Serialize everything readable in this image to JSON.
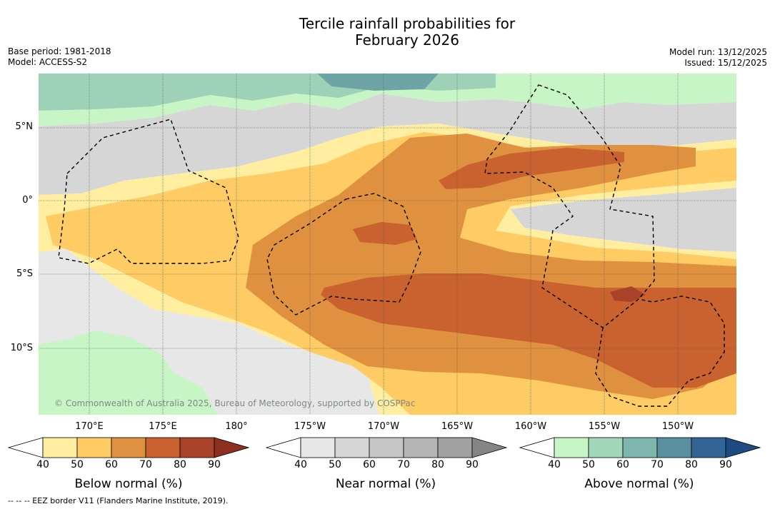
{
  "title_line1": "Tercile rainfall probabilities for",
  "title_line2": "February 2026",
  "meta_left": [
    "Base period: 1981-2018",
    "Model: ACCESS-S2"
  ],
  "meta_right": [
    "Model run: 13/12/2025",
    "Issued: 15/12/2025"
  ],
  "lat_ticks": [
    "5°N",
    "0°",
    "5°S",
    "10°S"
  ],
  "lon_ticks": [
    "170°E",
    "175°E",
    "180°",
    "175°W",
    "170°W",
    "165°W",
    "160°W",
    "155°W",
    "150°W"
  ],
  "copyright": "© Commonwealth of Australia 2025, Bureau of Meteorology, supported by COSPPac",
  "footer": "-- -- -- EEZ border V11 (Flanders Marine Institute, 2019).",
  "colorbars": [
    {
      "name": "below",
      "label": "Below normal (%)",
      "ticks": [
        "40",
        "50",
        "60",
        "70",
        "80",
        "90"
      ],
      "colors": [
        "#ffffff",
        "#ffeda0",
        "#fecb65",
        "#e0913f",
        "#c9622e",
        "#a8432a",
        "#8c2f1f"
      ]
    },
    {
      "name": "near",
      "label": "Near normal (%)",
      "ticks": [
        "40",
        "50",
        "60",
        "70",
        "80",
        "90"
      ],
      "colors": [
        "#ffffff",
        "#e7e7e7",
        "#d6d6d6",
        "#c6c6c6",
        "#b4b4b4",
        "#a1a1a1",
        "#858585"
      ]
    },
    {
      "name": "above",
      "label": "Above normal (%)",
      "ticks": [
        "40",
        "50",
        "60",
        "70",
        "80",
        "90"
      ],
      "colors": [
        "#ffffff",
        "#c8f5c5",
        "#a2d6b8",
        "#7fb6ae",
        "#5a8fa0",
        "#326596",
        "#1d4a80"
      ]
    }
  ],
  "colors": {
    "below50": "#ffeda0",
    "below60": "#fecb65",
    "below70": "#e0913f",
    "below80": "#c9622e",
    "below90": "#a8432a",
    "near50": "#e7e7e7",
    "near60": "#d6d6d6",
    "above50": "#c8f5c5",
    "above60": "#9dd2b8",
    "above70": "#6ea4a6"
  }
}
